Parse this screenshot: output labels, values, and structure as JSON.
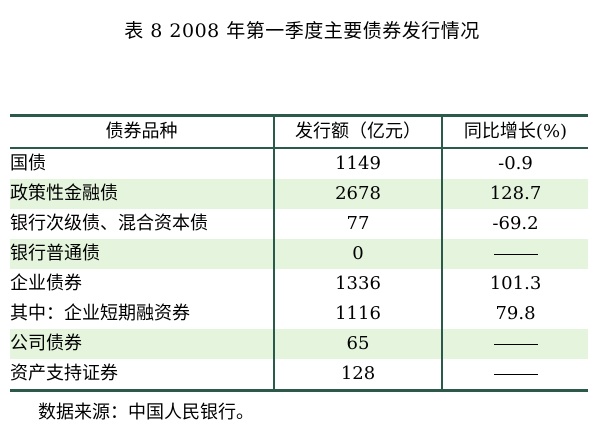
{
  "title": "表 8 2008 年第一季度主要债券发行情况",
  "table": {
    "headers": [
      "债券品种",
      "发行额（亿元）",
      "同比增长(%)"
    ],
    "rows": [
      {
        "name": "国债",
        "amount": "1149",
        "yoy": "-0.9"
      },
      {
        "name": "政策性金融债",
        "amount": "2678",
        "yoy": "128.7"
      },
      {
        "name": "银行次级债、混合资本债",
        "amount": "77",
        "yoy": "-69.2"
      },
      {
        "name": "银行普通债",
        "amount": "0",
        "yoy": "——"
      },
      {
        "name": "企业债券",
        "amount": "1336",
        "yoy": "101.3"
      },
      {
        "name": "其中：企业短期融资券",
        "amount": "1116",
        "yoy": "79.8"
      },
      {
        "name": "公司债券",
        "amount": "65",
        "yoy": "——"
      },
      {
        "name": "资产支持证券",
        "amount": "128",
        "yoy": "——"
      }
    ]
  },
  "source": "数据来源：中国人民银行。",
  "colors": {
    "row_shade": "#e5f4dd",
    "rule": "#2b5a4a"
  }
}
